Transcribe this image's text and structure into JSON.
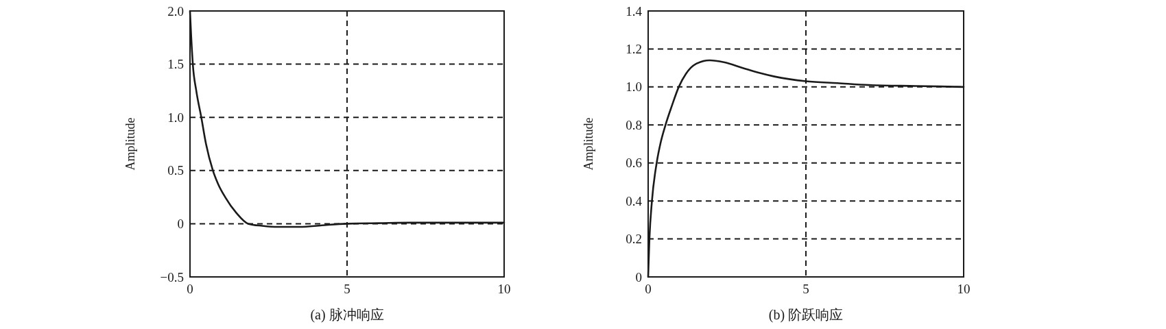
{
  "chart_data": [
    {
      "type": "line",
      "title": "(a) 脉冲响应",
      "ylabel": "Amplitude",
      "x": [
        0,
        0.04,
        0.09,
        0.2,
        0.36,
        0.51,
        0.73,
        0.9,
        1.12,
        1.48,
        1.85,
        2.3,
        2.8,
        3.5,
        4.2,
        5,
        6,
        7,
        8.5,
        10
      ],
      "series": [
        {
          "color": "#1a1a1a",
          "values": [
            2.0,
            1.75,
            1.5,
            1.25,
            1.0,
            0.75,
            0.5,
            0.37,
            0.25,
            0.1,
            0,
            -0.02,
            -0.03,
            -0.03,
            -0.015,
            0,
            0.005,
            0.01,
            0.01,
            0.01
          ]
        }
      ],
      "xlim": [
        0,
        10
      ],
      "ylim": [
        -0.5,
        2.0
      ],
      "xticks": [
        0,
        5,
        10
      ],
      "yticks": [
        {
          "value": -0.5,
          "label": "−0.5"
        },
        0,
        0.5,
        {
          "value": 1.0,
          "label": "1.0"
        },
        1.5,
        {
          "value": 2.0,
          "label": "2.0"
        }
      ],
      "grid": true
    },
    {
      "type": "line",
      "title": "(b) 阶跃响应",
      "ylabel": "Amplitude",
      "x": [
        0,
        0.04,
        0.12,
        0.27,
        0.4,
        0.55,
        0.75,
        0.97,
        1.2,
        1.5,
        1.95,
        2.4,
        3,
        3.5,
        4,
        5,
        6,
        7,
        8.5,
        10
      ],
      "series": [
        {
          "color": "#1a1a1a",
          "values": [
            0,
            0.2,
            0.4,
            0.6,
            0.71,
            0.8,
            0.9,
            1.0,
            1.07,
            1.12,
            1.14,
            1.13,
            1.1,
            1.075,
            1.055,
            1.03,
            1.02,
            1.01,
            1.005,
            1.0
          ]
        }
      ],
      "xlim": [
        0,
        10
      ],
      "ylim": [
        0,
        1.4
      ],
      "xticks": [
        0,
        5,
        10
      ],
      "yticks": [
        0,
        0.2,
        0.4,
        0.6,
        0.8,
        {
          "value": 1.0,
          "label": "1.0"
        },
        1.2,
        1.4
      ],
      "grid": true
    }
  ]
}
